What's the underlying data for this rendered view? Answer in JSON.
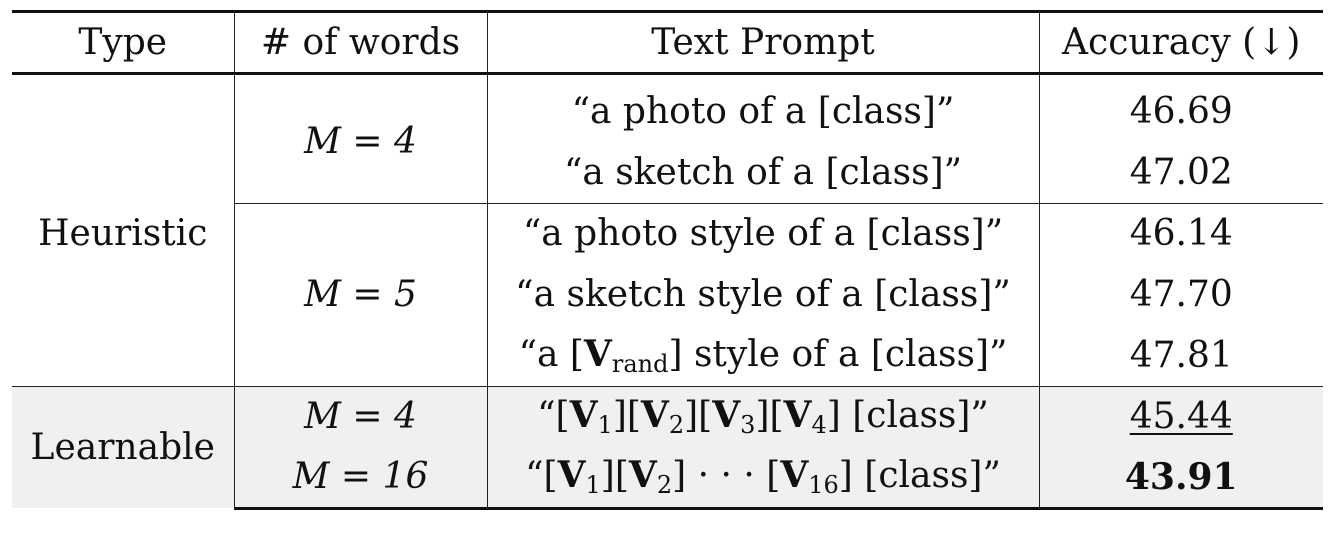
{
  "headers": {
    "type": "Type",
    "words": "# of words",
    "prompt": "Text Prompt",
    "accuracy": "Accuracy (↓)"
  },
  "groups": {
    "heuristic": "Heuristic",
    "learnable": "Learnable"
  },
  "rows": [
    {
      "m": "M = 4",
      "prompt": "“a photo of a [class]”",
      "acc": "46.69"
    },
    {
      "m": "",
      "prompt": "“a sketch of a [class]”",
      "acc": "47.02"
    },
    {
      "m": "M = 5",
      "prompt": "“a photo style of a [class]”",
      "acc": "46.14"
    },
    {
      "m": "",
      "prompt": "“a sketch style of a [class]”",
      "acc": "47.70"
    },
    {
      "m": "",
      "prompt_parts": {
        "pre": "“a [",
        "v": "V",
        "sub": "rand",
        "post": "] style of a [class]”"
      },
      "acc": "47.81"
    },
    {
      "m": "M = 4",
      "prompt_parts": {
        "text": "“[V1][V2][V3][V4] [class]”"
      },
      "acc": "45.44",
      "acc_style": "underline"
    },
    {
      "m": "M = 16",
      "prompt_parts": {
        "text": "“[V1][V2] · · · [V16] [class]”"
      },
      "acc": "43.91",
      "acc_style": "bold"
    }
  ]
}
